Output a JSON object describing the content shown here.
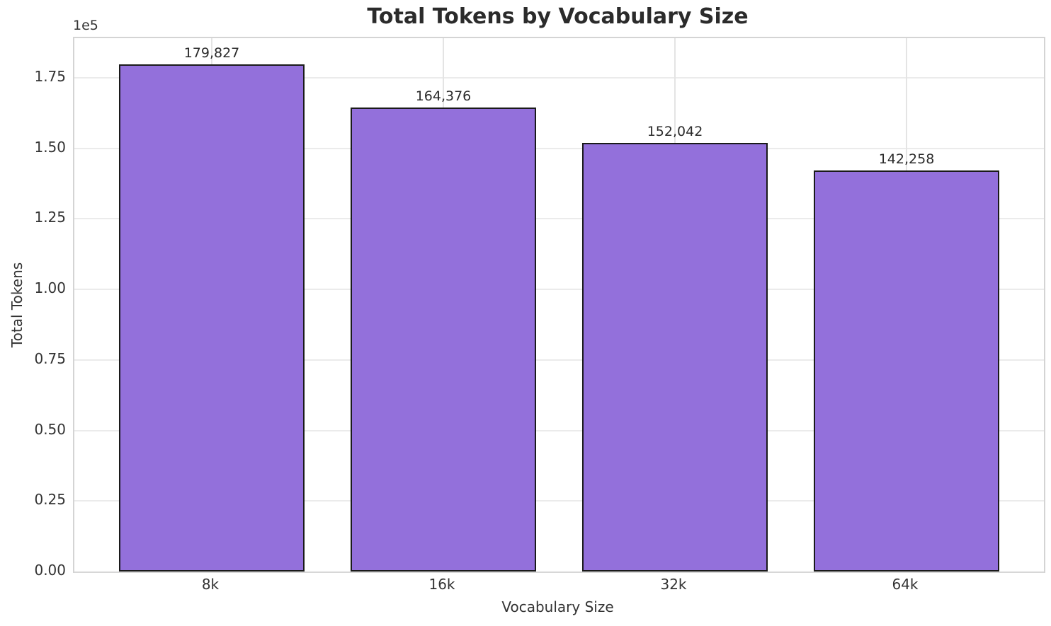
{
  "chart_data": {
    "type": "bar",
    "title": "Total Tokens by Vocabulary Size",
    "xlabel": "Vocabulary Size",
    "ylabel": "Total Tokens",
    "y_offset_text": "1e5",
    "categories": [
      "8k",
      "16k",
      "32k",
      "64k"
    ],
    "values": [
      179827,
      164376,
      152042,
      142258
    ],
    "value_labels": [
      "179,827",
      "164,376",
      "152,042",
      "142,258"
    ],
    "ytick_values": [
      0,
      25000,
      50000,
      75000,
      100000,
      125000,
      150000,
      175000
    ],
    "ytick_labels": [
      "0.00",
      "0.25",
      "0.50",
      "0.75",
      "1.00",
      "1.25",
      "1.50",
      "1.75"
    ],
    "ylim": [
      0,
      189040
    ],
    "grid": true,
    "legend_position": "none",
    "bar_color": "#9370DB",
    "bar_edge_color": "#1a1a1a",
    "text_color": "#333333",
    "title_color": "#2b2b2b"
  }
}
